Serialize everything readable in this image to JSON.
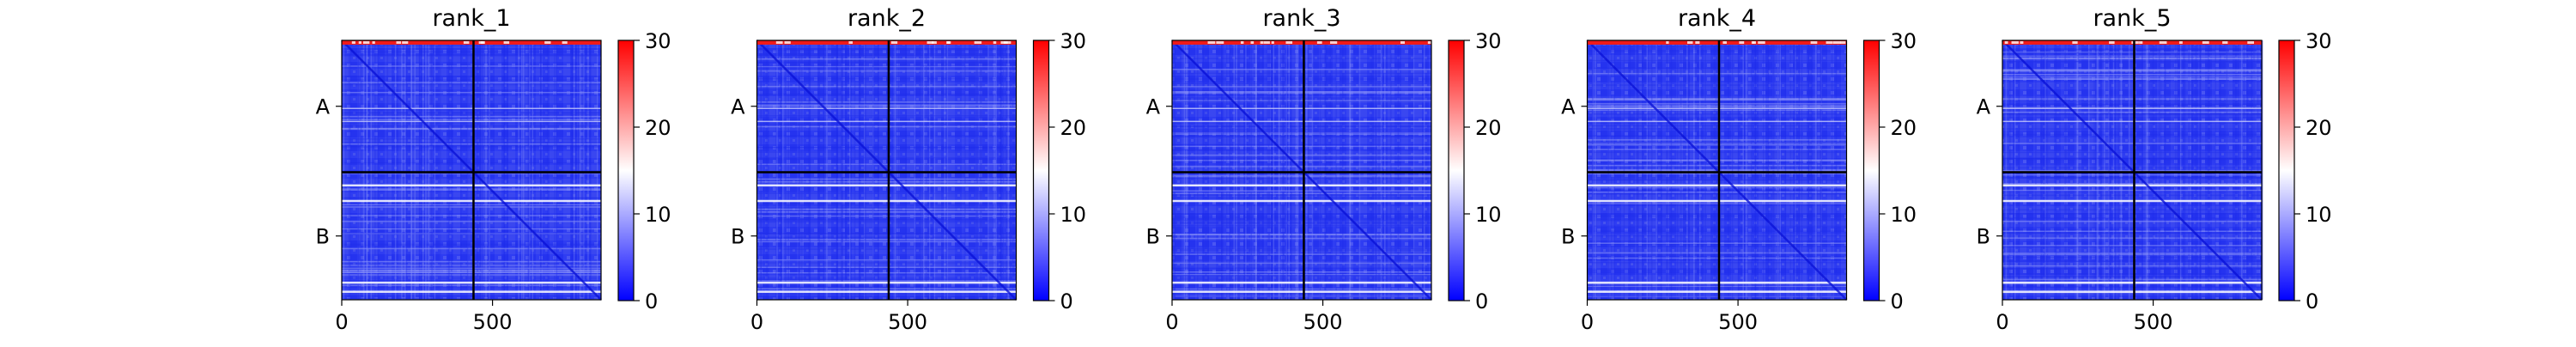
{
  "chart_data": [
    {
      "type": "heatmap",
      "title": "rank_1",
      "x_tick_labels": [
        "0",
        "500"
      ],
      "y_tick_labels": [
        "A",
        "B"
      ],
      "x_range": [
        0,
        860
      ],
      "chain_boundary": 437,
      "colorbar": {
        "ticks": [
          "0",
          "10",
          "20",
          "30"
        ],
        "range": [
          0,
          30
        ],
        "colormap": "bwr"
      }
    },
    {
      "type": "heatmap",
      "title": "rank_2",
      "x_tick_labels": [
        "0",
        "500"
      ],
      "y_tick_labels": [
        "A",
        "B"
      ],
      "x_range": [
        0,
        860
      ],
      "chain_boundary": 437,
      "colorbar": {
        "ticks": [
          "0",
          "10",
          "20",
          "30"
        ],
        "range": [
          0,
          30
        ],
        "colormap": "bwr"
      }
    },
    {
      "type": "heatmap",
      "title": "rank_3",
      "x_tick_labels": [
        "0",
        "500"
      ],
      "y_tick_labels": [
        "A",
        "B"
      ],
      "x_range": [
        0,
        860
      ],
      "chain_boundary": 437,
      "colorbar": {
        "ticks": [
          "0",
          "10",
          "20",
          "30"
        ],
        "range": [
          0,
          30
        ],
        "colormap": "bwr"
      }
    },
    {
      "type": "heatmap",
      "title": "rank_4",
      "x_tick_labels": [
        "0",
        "500"
      ],
      "y_tick_labels": [
        "A",
        "B"
      ],
      "x_range": [
        0,
        860
      ],
      "chain_boundary": 437,
      "colorbar": {
        "ticks": [
          "0",
          "10",
          "20",
          "30"
        ],
        "range": [
          0,
          30
        ],
        "colormap": "bwr"
      }
    },
    {
      "type": "heatmap",
      "title": "rank_5",
      "x_tick_labels": [
        "0",
        "500"
      ],
      "y_tick_labels": [
        "A",
        "B"
      ],
      "x_range": [
        0,
        860
      ],
      "chain_boundary": 437,
      "colorbar": {
        "ticks": [
          "0",
          "10",
          "20",
          "30"
        ],
        "range": [
          0,
          30
        ],
        "colormap": "bwr"
      }
    }
  ],
  "colors": {
    "low": "#0000ff",
    "mid": "#ffffff",
    "high": "#ff0000",
    "grid": "#000000"
  }
}
